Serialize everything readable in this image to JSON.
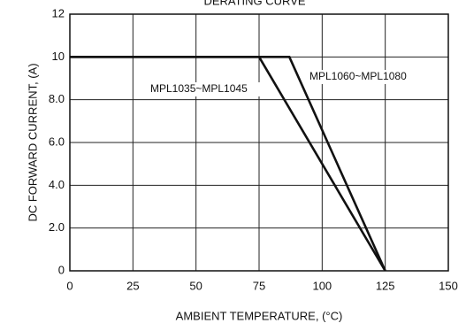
{
  "chart_data": {
    "type": "line",
    "title": "DERATING CURVE",
    "x_label": "AMBIENT  TEMPERATURE, (°C)",
    "y_label": "DC FORWARD  CURRENT, (A)",
    "xlim": [
      0,
      150
    ],
    "xticks": [
      0,
      25,
      50,
      75,
      100,
      125,
      150
    ],
    "ylim": [
      0,
      12
    ],
    "yticks": [
      0,
      {
        "value": 2,
        "label": "2.0"
      },
      {
        "value": 4,
        "label": "4.0"
      },
      {
        "value": 6,
        "label": "6.0"
      },
      {
        "value": 8,
        "label": "8.0"
      },
      10,
      12
    ],
    "grid": true,
    "series": [
      {
        "name": "MPL1035~MPL1045",
        "color": "#111111",
        "x": [
          0,
          75,
          125
        ],
        "values": [
          10,
          10,
          0
        ]
      },
      {
        "name": "MPL1060~MPL1080",
        "color": "#111111",
        "x": [
          0,
          87,
          125
        ],
        "values": [
          10,
          10,
          0
        ]
      }
    ]
  }
}
